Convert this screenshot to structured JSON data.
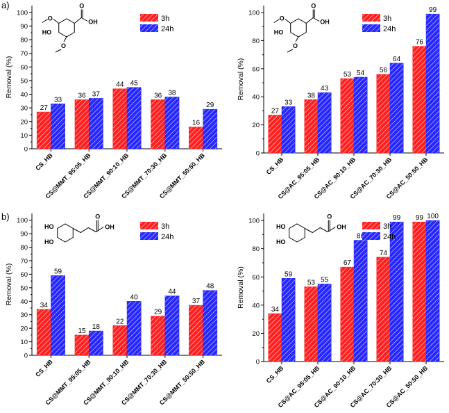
{
  "figure": {
    "panel_labels": [
      "a)",
      "b)"
    ]
  },
  "colors": {
    "3h": "#ff1f1f",
    "24h": "#2626ff"
  },
  "chart_data": [
    {
      "type": "bar",
      "id": "a-left",
      "ylabel": "Removal (%)",
      "ylim": [
        0,
        105
      ],
      "yticks": [
        0,
        10,
        20,
        30,
        40,
        50,
        60,
        70,
        80,
        90,
        100
      ],
      "categories": [
        "CS_HB",
        "CS@MMT_95:05_HB",
        "CS@MMT_90:10_HB",
        "CS@MMT_70:30_HB",
        "CS@MMT_50:50_HB"
      ],
      "series": [
        {
          "name": "3h",
          "values": [
            27,
            36,
            44,
            36,
            16
          ]
        },
        {
          "name": "24h",
          "values": [
            33,
            37,
            45,
            38,
            29
          ]
        }
      ],
      "molecule": {
        "labels": [
          "O",
          "OH",
          "HO",
          "O"
        ]
      },
      "legend": "top-right",
      "grid": false
    },
    {
      "type": "bar",
      "id": "a-right",
      "ylabel": "Removal (%)",
      "ylim": [
        0,
        105
      ],
      "yticks": [
        0,
        20,
        40,
        60,
        80,
        100
      ],
      "categories": [
        "CS_HB",
        "CS@AC_95:05_HB",
        "CS@AC_90:10_HB",
        "CS@AC_70:30_HB",
        "CS@AC_50:50_HB"
      ],
      "series": [
        {
          "name": "3h",
          "values": [
            27,
            38,
            53,
            56,
            76
          ]
        },
        {
          "name": "24h",
          "values": [
            33,
            43,
            54,
            64,
            99
          ]
        }
      ],
      "molecule": {
        "labels": [
          "O",
          "OH",
          "HO",
          "O"
        ]
      },
      "legend": "top-right",
      "grid": false
    },
    {
      "type": "bar",
      "id": "b-left",
      "ylabel": "Removal (%)",
      "ylim": [
        0,
        105
      ],
      "yticks": [
        0,
        10,
        20,
        30,
        40,
        50,
        60,
        70,
        80,
        90,
        100
      ],
      "categories": [
        "CS_HB",
        "CS@MMT_95:05_HB",
        "CS@MMT_90:10_HB",
        "CS@MMT_70:30_HB",
        "CS@MMT_50:50_HB"
      ],
      "series": [
        {
          "name": "3h",
          "values": [
            34,
            15,
            22,
            29,
            37
          ]
        },
        {
          "name": "24h",
          "values": [
            59,
            18,
            40,
            44,
            48
          ]
        }
      ],
      "molecule": {
        "labels": [
          "HO",
          "HO",
          "O",
          "OH"
        ]
      },
      "legend": "top-right",
      "grid": false
    },
    {
      "type": "bar",
      "id": "b-right",
      "ylabel": "Removal (%)",
      "ylim": [
        0,
        105
      ],
      "yticks": [
        0,
        20,
        40,
        60,
        80,
        100
      ],
      "categories": [
        "CS_HB",
        "CS@AC_95:05_HB",
        "CS@AC_90:10_HB",
        "CS@AC_70:30_HB",
        "CS@AC_50:50_HB"
      ],
      "series": [
        {
          "name": "3h",
          "values": [
            34,
            53,
            67,
            74,
            99
          ]
        },
        {
          "name": "24h",
          "values": [
            59,
            55,
            86,
            99,
            100
          ]
        }
      ],
      "molecule": {
        "labels": [
          "HO",
          "HO",
          "O",
          "OH"
        ]
      },
      "legend": "top-right",
      "grid": false
    }
  ]
}
